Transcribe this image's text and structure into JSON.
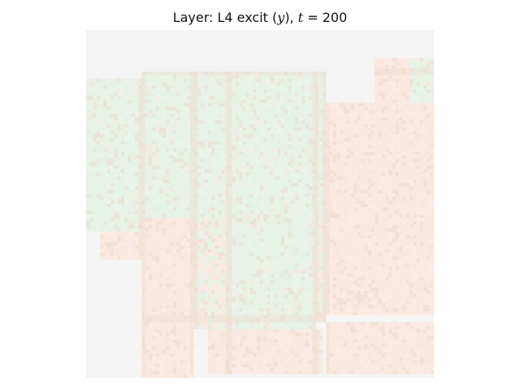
{
  "chart_data": {
    "type": "heatmap",
    "title": {
      "prefix": "Layer: L4 excit (",
      "var": "y",
      "mid": "), ",
      "tvar": "t",
      "eq": " = 200"
    },
    "xlabel": "",
    "ylabel": "",
    "grid": false,
    "axes_visible": false,
    "colormap": "diverging green-white-red (near zero range shown)",
    "grid_size": 100,
    "colors": {
      "background": "#f4f4f4",
      "green_region": "#e4f2e4",
      "red_region": "#fbe6dc",
      "tan_border": "#ecdccc"
    },
    "regions": [
      {
        "label": "upper-left green lobe",
        "sign": "negative"
      },
      {
        "label": "central green body",
        "sign": "negative"
      },
      {
        "label": "left red block",
        "sign": "positive"
      },
      {
        "label": "right red block",
        "sign": "positive"
      },
      {
        "label": "bottom red band",
        "sign": "positive"
      },
      {
        "label": "lower-left red band",
        "sign": "positive"
      }
    ]
  }
}
